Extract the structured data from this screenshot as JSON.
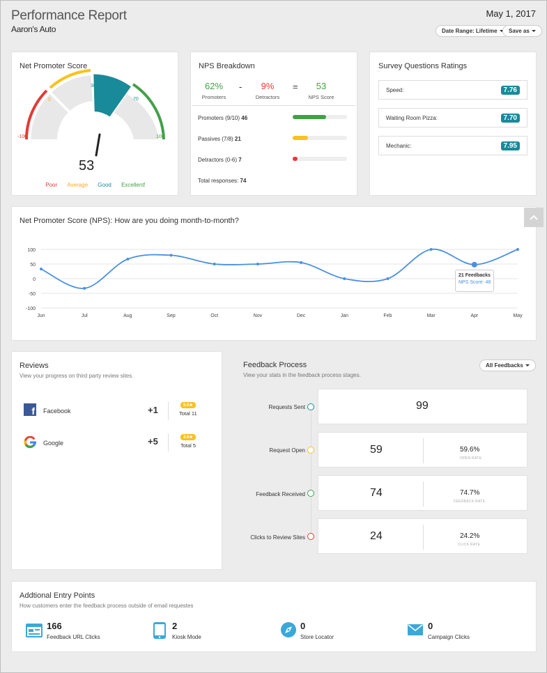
{
  "header": {
    "title": "Performance Report",
    "subtitle": "Aaron's Auto",
    "date": "May 1, 2017",
    "date_range_label": "Date Range: Lifetime",
    "save_label": "Save as"
  },
  "gauge": {
    "title": "Net Promoter Score",
    "value": "53",
    "score": 53,
    "ticks": [
      "-100",
      "0",
      "30",
      "70",
      "100"
    ],
    "legend": [
      "Poor",
      "Average",
      "Good",
      "Excellent!"
    ],
    "colors": {
      "poor": "#e53935",
      "average": "#f9c21c",
      "good": "#198a99",
      "excellent": "#43a047"
    }
  },
  "breakdown": {
    "title": "NPS Breakdown",
    "promoters_pct": "62%",
    "promoters_label": "Promoters",
    "minus": "-",
    "detractors_pct": "9%",
    "detractors_label": "Detractors",
    "equals": "=",
    "nps_score": "53",
    "nps_score_label": "NPS Score",
    "rows": [
      {
        "label": "Promoters (9/10)",
        "count": "46",
        "fraction": 0.62,
        "color": "#43a047"
      },
      {
        "label": "Passives (7/8)",
        "count": "21",
        "fraction": 0.28,
        "color": "#f9c21c"
      },
      {
        "label": "Detractors (0-6)",
        "count": "7",
        "fraction": 0.09,
        "color": "#e53935"
      }
    ],
    "total_label": "Total responses:",
    "total": "74"
  },
  "survey": {
    "title": "Survey Questions Ratings",
    "items": [
      {
        "label": "Speed:",
        "rating": "7.76"
      },
      {
        "label": "Waiting Room Pizza:",
        "rating": "7.70"
      },
      {
        "label": "Mechanic:",
        "rating": "7.95"
      }
    ]
  },
  "chart_data": {
    "type": "line",
    "title": "Net Promoter Score (NPS): How are you doing month-to-month?",
    "categories": [
      "Jun",
      "Jul",
      "Aug",
      "Sep",
      "Oct",
      "Nov",
      "Dec",
      "Jan",
      "Feb",
      "Mar",
      "Apr",
      "May"
    ],
    "series": [
      {
        "values": [
          33,
          -33,
          67,
          80,
          50,
          50,
          55,
          0,
          0,
          100,
          48,
          100
        ]
      }
    ],
    "ylim": [
      -100,
      100
    ],
    "yticks": [
      "100",
      "50",
      "0",
      "-50",
      "-100"
    ],
    "grid": true,
    "color": "#4a90e2",
    "tooltip": {
      "title": "21 Feedbacks",
      "line": "NPS Score: 48"
    }
  },
  "reviews": {
    "title": "Reviews",
    "desc": "View your progress on third party review sites.",
    "items": [
      {
        "name": "Facebook",
        "delta": "+1",
        "tag": "5.0★",
        "total": "Total 11"
      },
      {
        "name": "Google",
        "delta": "+5",
        "tag": "3.6★",
        "total": "Total 5"
      }
    ]
  },
  "feedback": {
    "title": "Feedback Process",
    "desc": "View your stats in the feedback process stages.",
    "filter_label": "All Feedbacks",
    "stages": [
      {
        "label": "Requests Sent",
        "value": "99",
        "pct": "",
        "sub": "",
        "color": "#198a99"
      },
      {
        "label": "Request Open",
        "value": "59",
        "pct": "59.6%",
        "sub": "OPEN RATE",
        "color": "#f9c21c"
      },
      {
        "label": "Feedback Received",
        "value": "74",
        "pct": "74.7%",
        "sub": "FEEDBACK RATE",
        "color": "#43a047"
      },
      {
        "label": "Clicks to Review Sites",
        "value": "24",
        "pct": "24.2%",
        "sub": "CLICK RATE",
        "color": "#e53935"
      }
    ]
  },
  "entry": {
    "title": "Addtional Entry Points",
    "desc": "How customers enter the feedback process outside of email requestes",
    "items": [
      {
        "value": "166",
        "label": "Feedback URL Clicks",
        "icon": "browser-icon"
      },
      {
        "value": "2",
        "label": "Kiosk Mode",
        "icon": "tablet-icon"
      },
      {
        "value": "0",
        "label": "Store Locator",
        "icon": "compass-icon"
      },
      {
        "value": "0",
        "label": "Campaign Clicks",
        "icon": "envelope-icon"
      }
    ]
  }
}
